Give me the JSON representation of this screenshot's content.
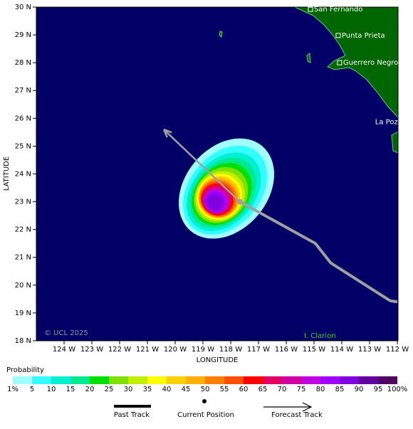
{
  "map": {
    "lat_ticks": [
      {
        "value": 30,
        "label": "30 N"
      },
      {
        "value": 29,
        "label": "29 N"
      },
      {
        "value": 28,
        "label": "28 N"
      },
      {
        "value": 27,
        "label": "27 N"
      },
      {
        "value": 26,
        "label": "26 N"
      },
      {
        "value": 25,
        "label": "25 N"
      },
      {
        "value": 24,
        "label": "24 N"
      },
      {
        "value": 23,
        "label": "23 N"
      },
      {
        "value": 22,
        "label": "22 N"
      },
      {
        "value": 21,
        "label": "21 N"
      },
      {
        "value": 20,
        "label": "20 N"
      },
      {
        "value": 19,
        "label": "19 N"
      },
      {
        "value": 18,
        "label": "18 N"
      }
    ],
    "lon_ticks": [
      {
        "value": -124,
        "label": "124 W"
      },
      {
        "value": -123,
        "label": "123 W"
      },
      {
        "value": -122,
        "label": "122 W"
      },
      {
        "value": -121,
        "label": "121 W"
      },
      {
        "value": -120,
        "label": "120 W"
      },
      {
        "value": -119,
        "label": "119 W"
      },
      {
        "value": -118,
        "label": "118 W"
      },
      {
        "value": -117,
        "label": "117 W"
      },
      {
        "value": -116,
        "label": "116 W"
      },
      {
        "value": -115,
        "label": "115 W"
      },
      {
        "value": -114,
        "label": "114 W"
      },
      {
        "value": -113,
        "label": "113 W"
      },
      {
        "value": -112,
        "label": "112 W"
      }
    ],
    "x_label": "LONGITUDE",
    "y_label": "LATITUDE",
    "places": [
      {
        "name": "San Fernando",
        "lon": -115.13,
        "lat": 29.92
      },
      {
        "name": "Punta Prieta",
        "lon": -114.13,
        "lat": 28.98
      },
      {
        "name": "Guerrero Negro",
        "lon": -114.08,
        "lat": 28.0
      }
    ],
    "place_unmarked": {
      "name": "La Poza",
      "lon": -112.8,
      "lat": 25.87
    },
    "credit": "© UCL 2025",
    "island": "I. Clarion"
  },
  "track": {
    "past": [
      [
        -112.0,
        19.4
      ],
      [
        -112.26,
        19.44
      ],
      [
        -114.4,
        20.8
      ],
      [
        -114.95,
        21.5
      ],
      [
        -117.67,
        23.0
      ]
    ],
    "current": [
      -117.67,
      23.0
    ],
    "forecast": [
      [
        -117.67,
        23.0
      ],
      [
        -120.41,
        25.6
      ]
    ]
  },
  "colorbar": {
    "title": "Probability",
    "labels": [
      "1%",
      "5",
      "10",
      "15",
      "20",
      "25",
      "30",
      "35",
      "40",
      "45",
      "50",
      "55",
      "60",
      "65",
      "70",
      "75",
      "80",
      "85",
      "90",
      "95",
      "100%"
    ],
    "colors": [
      "#a0ffff",
      "#33ffff",
      "#00f0d0",
      "#00e890",
      "#00e000",
      "#80e000",
      "#c0f000",
      "#ffff00",
      "#ffd000",
      "#ffb000",
      "#ff8000",
      "#ff5000",
      "#ff0000",
      "#e00060",
      "#d000a0",
      "#c000e0",
      "#a000ff",
      "#8000e0",
      "#6000a0",
      "#500060"
    ]
  },
  "legend": {
    "past": "Past Track",
    "current": "Current Position",
    "forecast": "Forecast Track"
  }
}
